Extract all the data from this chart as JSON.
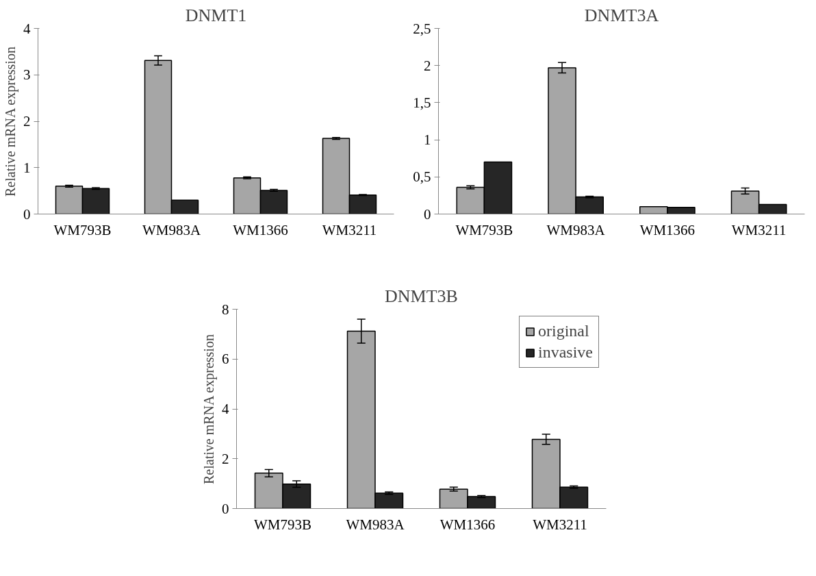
{
  "chart_data": [
    {
      "type": "bar",
      "title": "DNMT1",
      "ylabel": "Relative mRNA expression",
      "categories": [
        "WM793B",
        "WM983A",
        "WM1366",
        "WM3211"
      ],
      "ylim": [
        0,
        4
      ],
      "yticks": [
        0,
        1,
        2,
        3,
        4
      ],
      "grid": false,
      "series": [
        {
          "color": "#a6a6a6",
          "values": [
            0.6,
            3.31,
            0.78,
            1.63
          ],
          "errors": [
            0.02,
            0.1,
            0.02,
            0.02
          ]
        },
        {
          "color": "#262626",
          "values": [
            0.55,
            0.3,
            0.51,
            0.41
          ],
          "errors": [
            0.02,
            null,
            0.02,
            0.01
          ]
        }
      ]
    },
    {
      "type": "bar",
      "title": "DNMT3A",
      "categories": [
        "WM793B",
        "WM983A",
        "WM1366",
        "WM3211"
      ],
      "ylim": [
        0,
        2.5
      ],
      "yticks": [
        0,
        {
          "value": 0.5,
          "label": "0,5"
        },
        1,
        {
          "value": 1.5,
          "label": "1,5"
        },
        2,
        {
          "value": 2.5,
          "label": "2,5"
        }
      ],
      "grid": false,
      "series": [
        {
          "color": "#a6a6a6",
          "values": [
            0.36,
            1.97,
            0.1,
            0.31
          ],
          "errors": [
            0.02,
            0.07,
            null,
            0.04
          ]
        },
        {
          "color": "#262626",
          "values": [
            0.7,
            0.23,
            0.09,
            0.13
          ],
          "errors": [
            null,
            0.01,
            null,
            null
          ]
        }
      ]
    },
    {
      "type": "bar",
      "title": "DNMT3B",
      "ylabel": "Relative mRNA expression",
      "categories": [
        "WM793B",
        "WM983A",
        "WM1366",
        "WM3211"
      ],
      "ylim": [
        0,
        8
      ],
      "yticks": [
        0,
        2,
        4,
        6,
        8
      ],
      "grid": false,
      "legend": "top right",
      "series": [
        {
          "name": "original",
          "color": "#a6a6a6",
          "values": [
            1.42,
            7.12,
            0.78,
            2.78
          ],
          "errors": [
            0.15,
            0.48,
            0.08,
            0.2
          ]
        },
        {
          "name": "invasive",
          "color": "#262626",
          "values": [
            0.98,
            0.62,
            0.48,
            0.86
          ],
          "errors": [
            0.13,
            0.05,
            0.04,
            0.05
          ]
        }
      ]
    }
  ]
}
